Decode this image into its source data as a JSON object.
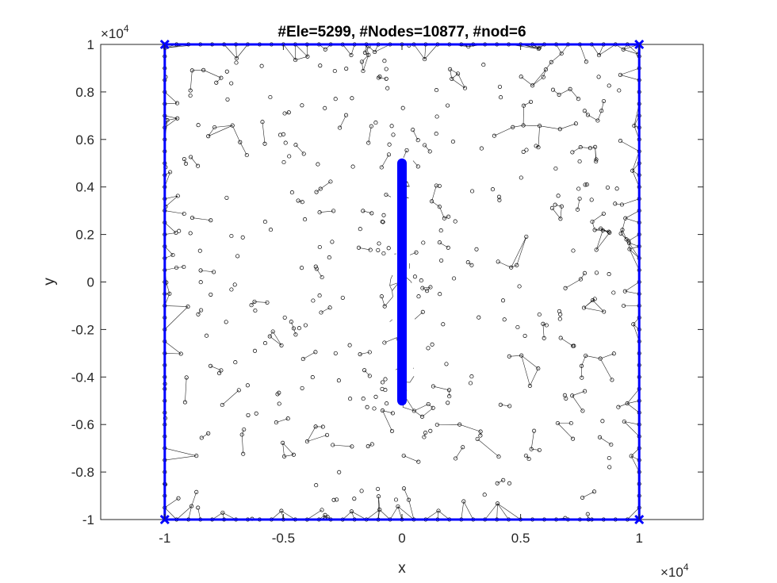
{
  "chart_data": {
    "type": "scatter",
    "title": "#Ele=5299, #Nodes=10877, #nod=6",
    "xlabel": "x",
    "ylabel": "y",
    "x_exponent_label": "×10",
    "x_exponent_power": "4",
    "y_exponent_label": "×10",
    "y_exponent_power": "4",
    "xlim": [
      -1.27,
      1.27
    ],
    "ylim": [
      -1,
      1
    ],
    "x_ticks": [
      -1,
      -0.5,
      0,
      0.5,
      1
    ],
    "x_tick_labels": [
      "-1",
      "-0.5",
      "0",
      "0.5",
      "1"
    ],
    "y_ticks": [
      -1,
      -0.8,
      -0.6,
      -0.4,
      -0.2,
      0,
      0.2,
      0.4,
      0.6,
      0.8,
      1
    ],
    "y_tick_labels": [
      "-1",
      "-0.8",
      "-0.6",
      "-0.4",
      "-0.2",
      "0",
      "0.2",
      "0.4",
      "0.6",
      "0.8",
      "1"
    ],
    "grid": false,
    "colors": {
      "mesh": "#000000",
      "boundary": "#0000ff",
      "axes": "#262626"
    },
    "mesh": {
      "domain_x": [
        -1,
        1
      ],
      "domain_y": [
        -1,
        1
      ],
      "elements": 5299,
      "nodes": 10877,
      "nodes_per_element": 6
    },
    "series": [
      {
        "type": "boundary",
        "color": "#0000ff",
        "x": [
          -1,
          1,
          1,
          -1,
          -1
        ],
        "y": [
          -1,
          -1,
          1,
          1,
          -1
        ]
      },
      {
        "type": "crack",
        "color": "#0000ff",
        "x": [
          0,
          0
        ],
        "y": [
          -0.5,
          0.5
        ]
      }
    ]
  }
}
